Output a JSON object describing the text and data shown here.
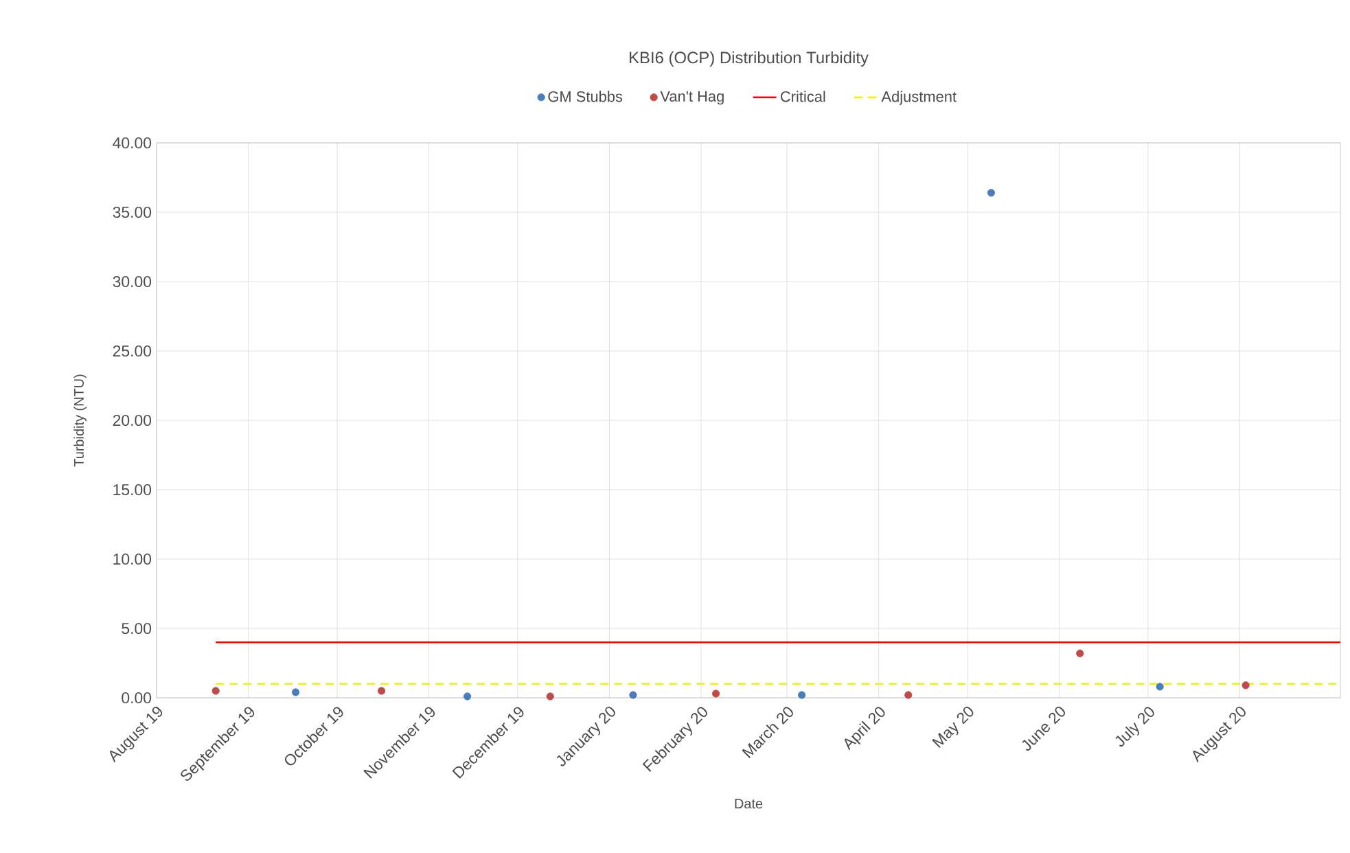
{
  "chart_data": {
    "type": "scatter",
    "title": "KBI6 (OCP) Distribution Turbidity",
    "xlabel": "Date",
    "ylabel": "Turbidity (NTU)",
    "xlim": [
      "2019-08-01",
      "2020-09-04"
    ],
    "xticks": [
      {
        "value": "2019-08-01",
        "label": "August 19"
      },
      {
        "value": "2019-09-01",
        "label": "September 19"
      },
      {
        "value": "2019-10-01",
        "label": "October 19"
      },
      {
        "value": "2019-11-01",
        "label": "November 19"
      },
      {
        "value": "2019-12-01",
        "label": "December 19"
      },
      {
        "value": "2020-01-01",
        "label": "January 20"
      },
      {
        "value": "2020-02-01",
        "label": "February 20"
      },
      {
        "value": "2020-03-01",
        "label": "March 20"
      },
      {
        "value": "2020-04-01",
        "label": "April 20"
      },
      {
        "value": "2020-05-01",
        "label": "May 20"
      },
      {
        "value": "2020-06-01",
        "label": "June 20"
      },
      {
        "value": "2020-07-01",
        "label": "July 20"
      },
      {
        "value": "2020-08-01",
        "label": "August 20"
      }
    ],
    "ylim": [
      0,
      40
    ],
    "yticks": [
      {
        "value": 0,
        "label": "0.00"
      },
      {
        "value": 5,
        "label": "5.00"
      },
      {
        "value": 10,
        "label": "10.00"
      },
      {
        "value": 15,
        "label": "15.00"
      },
      {
        "value": 20,
        "label": "20.00"
      },
      {
        "value": 25,
        "label": "25.00"
      },
      {
        "value": 30,
        "label": "30.00"
      },
      {
        "value": 35,
        "label": "35.00"
      },
      {
        "value": 40,
        "label": "40.00"
      }
    ],
    "grid": true,
    "legend": "top",
    "series": [
      {
        "name": "GM Stubbs",
        "color": "#4a7ebb",
        "x": [
          "2019-09-17",
          "2019-11-14",
          "2020-01-09",
          "2020-03-06",
          "2020-05-09",
          "2020-07-05"
        ],
        "values": [
          0.4,
          0.1,
          0.2,
          0.2,
          36.4,
          0.8
        ]
      },
      {
        "name": "Van't Hag",
        "color": "#be4b48",
        "x": [
          "2019-08-21",
          "2019-10-16",
          "2019-12-12",
          "2020-02-06",
          "2020-04-11",
          "2020-06-08",
          "2020-08-03"
        ],
        "values": [
          0.5,
          0.5,
          0.1,
          0.3,
          0.2,
          3.2,
          0.9
        ]
      },
      {
        "name": "Critical",
        "type": "line",
        "line_style": "solid",
        "color": "#ff0000",
        "x": [
          "2019-08-21",
          "2020-09-04"
        ],
        "values": [
          4.0,
          4.0
        ]
      },
      {
        "name": "Adjustment",
        "type": "line",
        "line_style": "dashed",
        "color": "#f2f200",
        "x": [
          "2019-08-21",
          "2020-09-04"
        ],
        "values": [
          1.0,
          1.0
        ]
      }
    ]
  }
}
